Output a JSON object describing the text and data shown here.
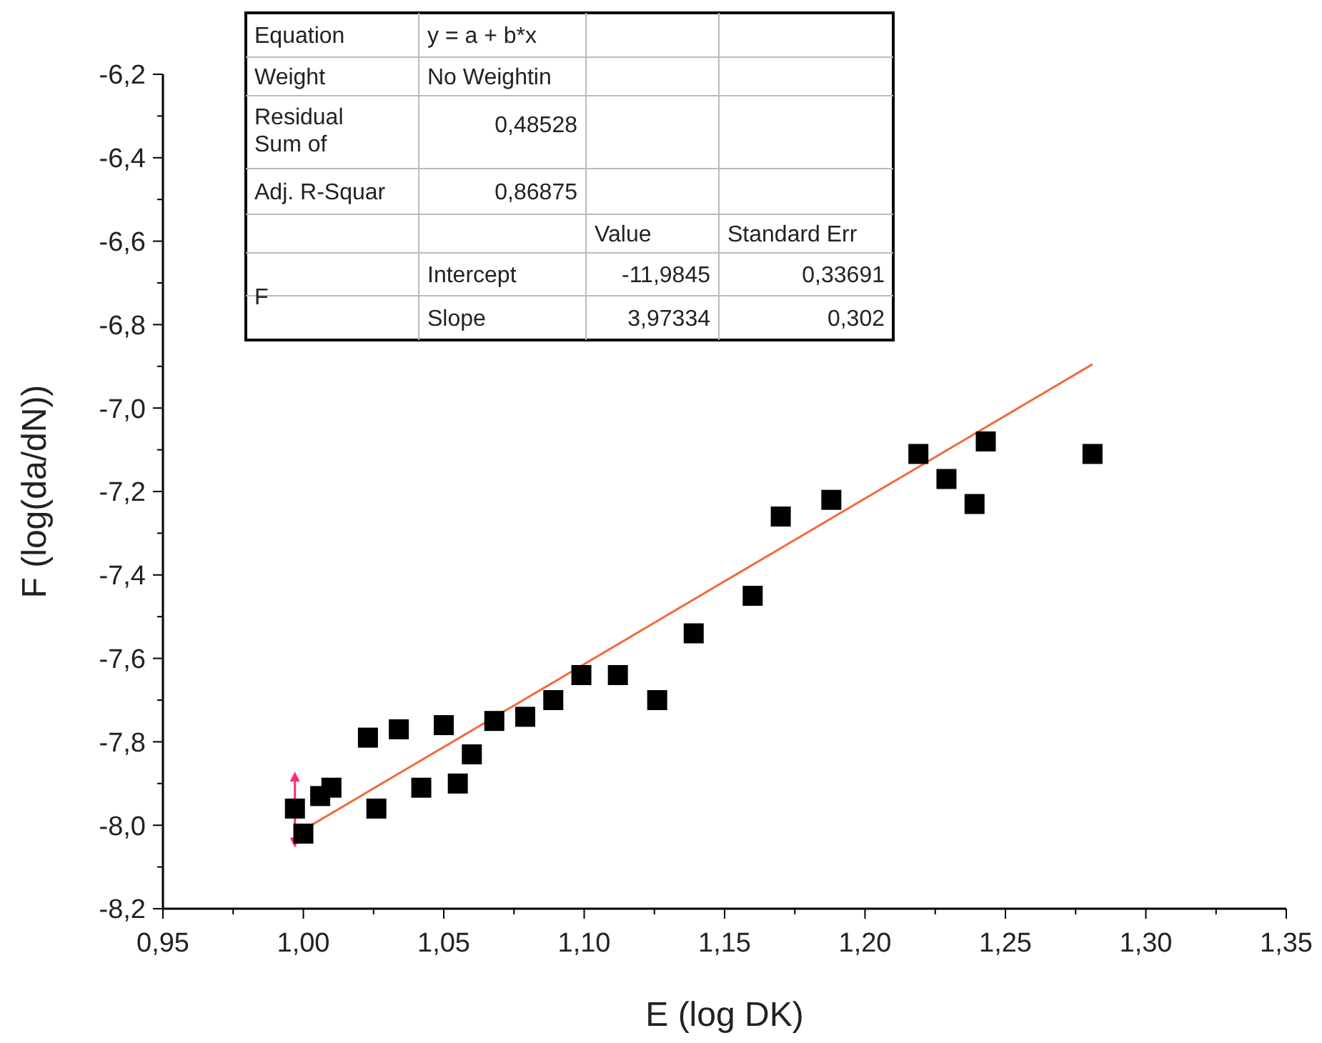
{
  "chart_data": {
    "type": "scatter",
    "xlabel": "E (log DK)",
    "ylabel": "F (log(da/dN))",
    "xlim": [
      0.95,
      1.35
    ],
    "xticks": [
      {
        "value": 0.95,
        "label": "0,95"
      },
      {
        "value": 0.975,
        "label": null
      },
      {
        "value": 1.0,
        "label": "1,00"
      },
      {
        "value": 1.025,
        "label": null
      },
      {
        "value": 1.05,
        "label": "1,05"
      },
      {
        "value": 1.075,
        "label": null
      },
      {
        "value": 1.1,
        "label": "1,10"
      },
      {
        "value": 1.125,
        "label": null
      },
      {
        "value": 1.15,
        "label": "1,15"
      },
      {
        "value": 1.175,
        "label": null
      },
      {
        "value": 1.2,
        "label": "1,20"
      },
      {
        "value": 1.225,
        "label": null
      },
      {
        "value": 1.25,
        "label": "1,25"
      },
      {
        "value": 1.275,
        "label": null
      },
      {
        "value": 1.3,
        "label": "1,30"
      },
      {
        "value": 1.325,
        "label": null
      },
      {
        "value": 1.35,
        "label": "1,35"
      }
    ],
    "ylim": [
      -8.2,
      -6.2
    ],
    "yticks": [
      {
        "value": -8.2,
        "label": "-8,2"
      },
      {
        "value": -8.1,
        "label": null
      },
      {
        "value": -8.0,
        "label": "-8,0"
      },
      {
        "value": -7.9,
        "label": null
      },
      {
        "value": -7.8,
        "label": "-7,8"
      },
      {
        "value": -7.7,
        "label": null
      },
      {
        "value": -7.6,
        "label": "-7,6"
      },
      {
        "value": -7.5,
        "label": null
      },
      {
        "value": -7.4,
        "label": "-7,4"
      },
      {
        "value": -7.3,
        "label": null
      },
      {
        "value": -7.2,
        "label": "-7,2"
      },
      {
        "value": -7.1,
        "label": null
      },
      {
        "value": -7.0,
        "label": "-7,0"
      },
      {
        "value": -6.9,
        "label": null
      },
      {
        "value": -6.8,
        "label": "-6,8"
      },
      {
        "value": -6.7,
        "label": null
      },
      {
        "value": -6.6,
        "label": "-6,6"
      },
      {
        "value": -6.5,
        "label": null
      },
      {
        "value": -6.4,
        "label": "-6,4"
      },
      {
        "value": -6.3,
        "label": null
      },
      {
        "value": -6.2,
        "label": "-6,2"
      }
    ],
    "grid": false,
    "series": [
      {
        "color": "#000000",
        "marker": "square",
        "x": [
          0.997,
          1.0,
          1.006,
          1.01,
          1.023,
          1.026,
          1.034,
          1.042,
          1.05,
          1.055,
          1.06,
          1.068,
          1.079,
          1.089,
          1.099,
          1.112,
          1.126,
          1.139,
          1.16,
          1.17,
          1.188,
          1.219,
          1.229,
          1.239,
          1.243,
          1.281
        ],
        "values": [
          -7.96,
          -8.02,
          -7.93,
          -7.91,
          -7.79,
          -7.96,
          -7.77,
          -7.91,
          -7.76,
          -7.9,
          -7.83,
          -7.75,
          -7.74,
          -7.7,
          -7.64,
          -7.64,
          -7.7,
          -7.54,
          -7.45,
          -7.26,
          -7.22,
          -7.11,
          -7.17,
          -7.23,
          -7.08,
          -7.11
        ],
        "line_style": "none"
      },
      {
        "type": "line",
        "color": "#ff2a7a",
        "marker": "triangle",
        "line_style": "solid",
        "x": [
          0.997,
          0.997
        ],
        "values": [
          -7.885,
          -8.04
        ]
      },
      {
        "type": "line",
        "color": "#f26b3a",
        "marker": "none",
        "line_style": "solid",
        "x": [
          1.0,
          1.281
        ],
        "values": [
          -8.011,
          -6.895
        ]
      }
    ],
    "annotations": [
      "Equation",
      "y = a + b*x",
      "Weight",
      "No Weightin",
      "Residual Sum of",
      "0,48528",
      "Adj. R-Squar",
      "0,86875",
      "Value",
      "Standard Err",
      "F",
      "Intercept",
      "-11,9845",
      "0,33691",
      "Slope",
      "3,97334",
      "0,302"
    ]
  }
}
